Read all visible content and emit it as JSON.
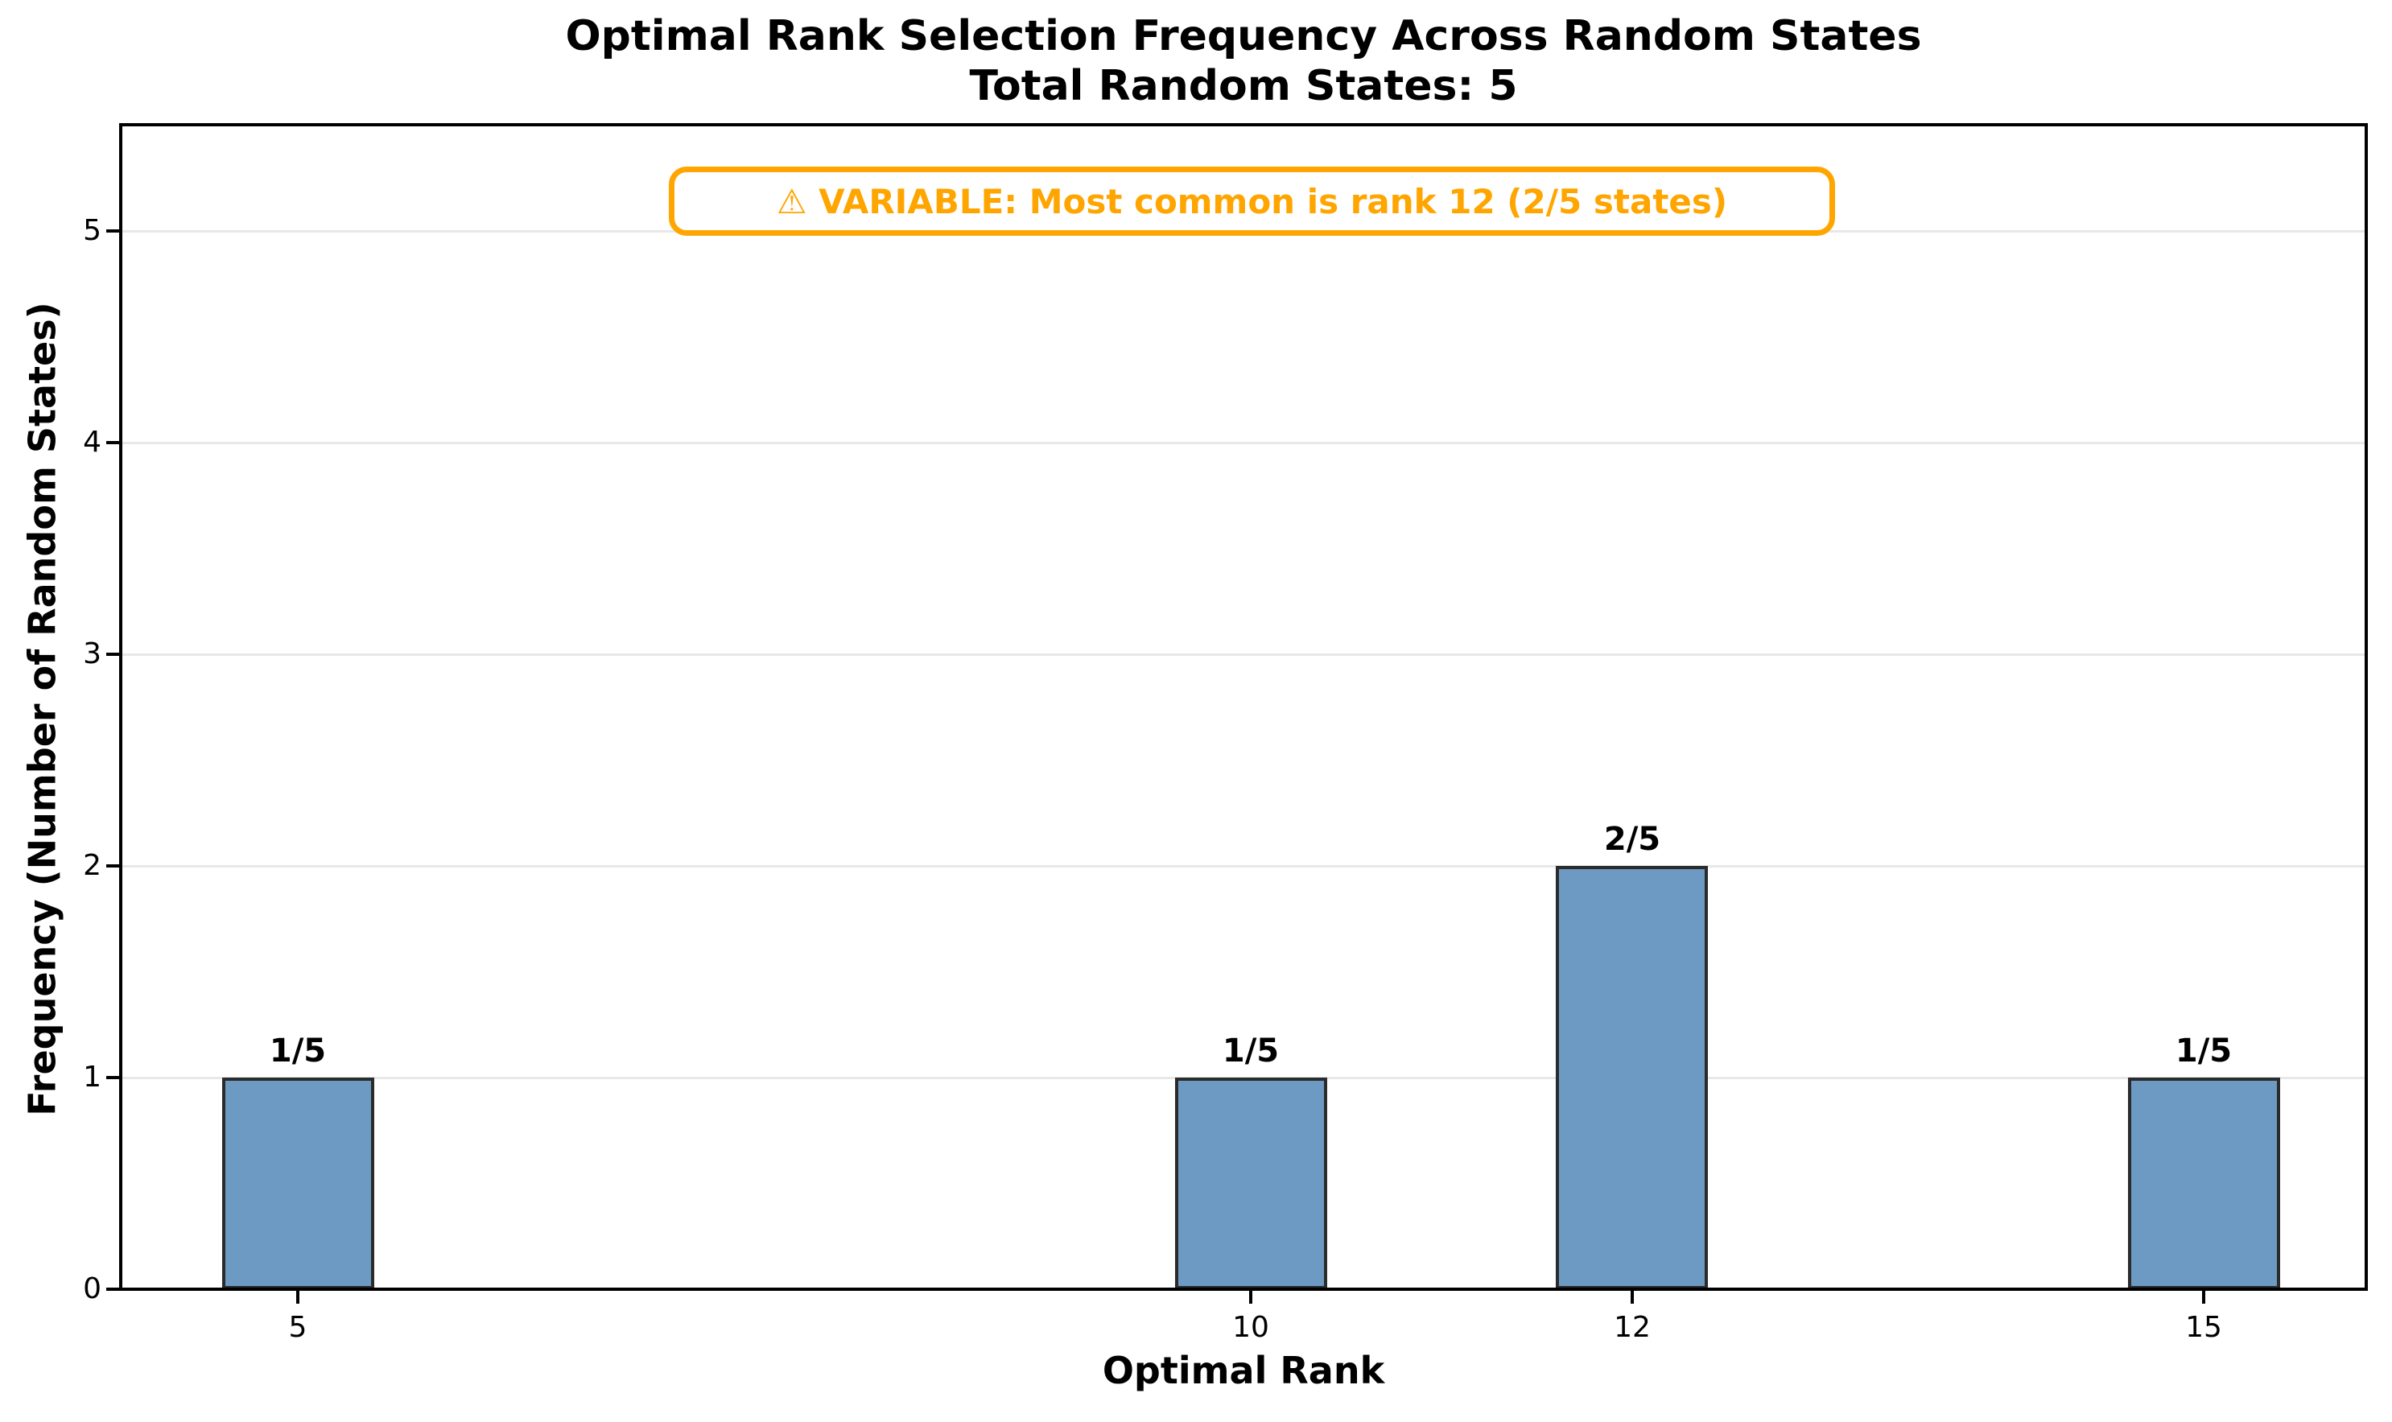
{
  "chart": {
    "title": "Optimal Rank Selection Frequency Across Random States",
    "subtitle": "Total Random States: 5",
    "annotation": "⚠ VARIABLE: Most common is rank 12 (2/5 states)",
    "xlabel": "Optimal Rank",
    "ylabel": "Frequency (Number of Random States)",
    "colors": {
      "bar_fill": "#6d9ac3",
      "bar_edge": "#2b2b2b",
      "annotation_accent": "#ffa500",
      "gridline": "#e8e8e8",
      "axis": "#000000"
    }
  },
  "chart_data": {
    "type": "bar",
    "title": "Optimal Rank Selection Frequency Across Random States",
    "subtitle": "Total Random States: 5",
    "xlabel": "Optimal Rank",
    "ylabel": "Frequency (Number of Random States)",
    "categories": [
      5,
      10,
      12,
      15
    ],
    "values": [
      1,
      1,
      2,
      1
    ],
    "bar_labels": [
      "1/5",
      "1/5",
      "2/5",
      "1/5"
    ],
    "x_tick_labels": [
      "5",
      "10",
      "12",
      "15"
    ],
    "y_ticks": [
      0,
      1,
      2,
      3,
      4,
      5
    ],
    "y_tick_labels": [
      "0",
      "1",
      "2",
      "3",
      "4",
      "5"
    ],
    "xlim": [
      4.06,
      15.94
    ],
    "ylim": [
      0,
      5.5
    ],
    "bar_width": 0.8,
    "grid": "horizontal",
    "legend": "none",
    "annotation": "⚠ VARIABLE: Most common is rank 12 (2/5 states)",
    "total_random_states": 5,
    "most_common_rank": 12,
    "most_common_count": "2/5"
  }
}
